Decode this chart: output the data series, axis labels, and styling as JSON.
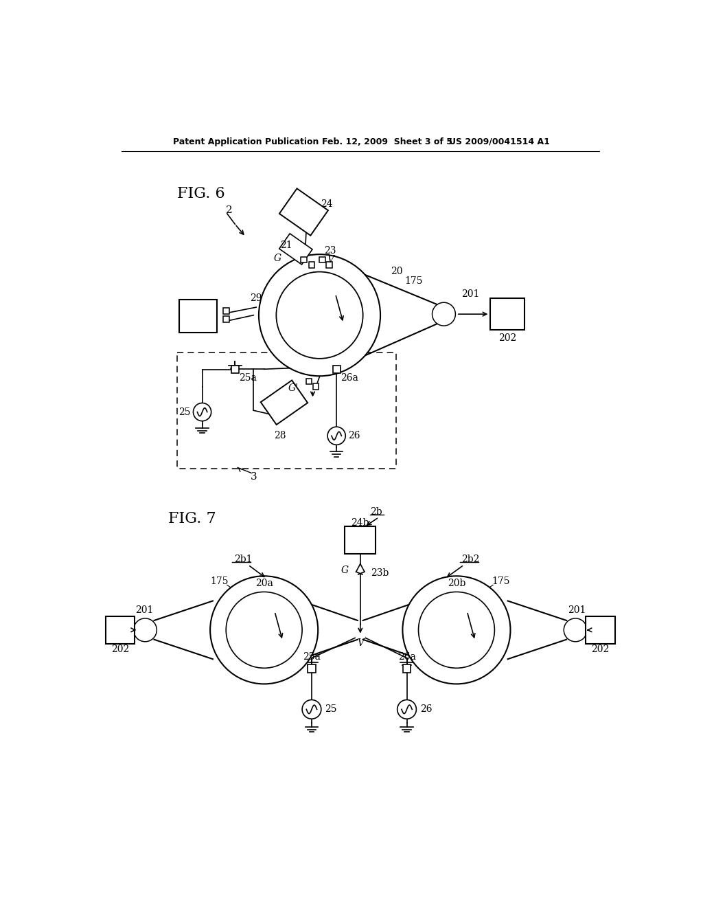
{
  "bg_color": "#ffffff",
  "line_color": "#000000",
  "header_left": "Patent Application Publication",
  "header_mid": "Feb. 12, 2009  Sheet 3 of 5",
  "header_right": "US 2009/0041514 A1",
  "fig6_label": "FIG. 6",
  "fig7_label": "FIG. 7"
}
